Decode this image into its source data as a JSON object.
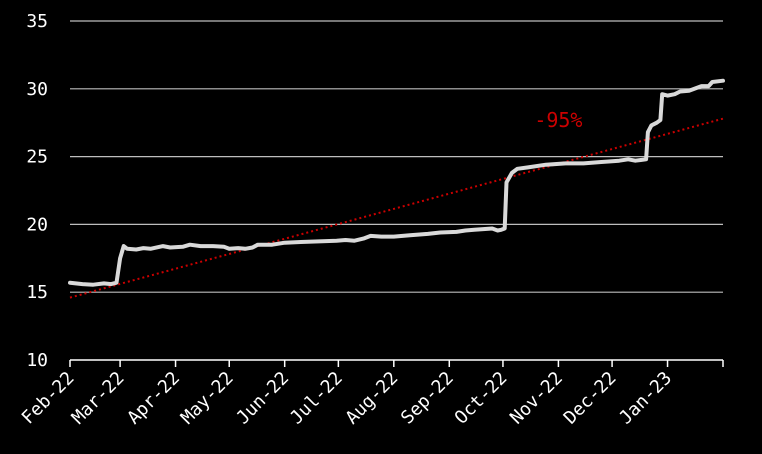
{
  "chart_data": {
    "type": "line",
    "title": "",
    "xlabel": "",
    "ylabel": "",
    "ylim": [
      10,
      35
    ],
    "yticks": [
      10,
      15,
      20,
      25,
      30,
      35
    ],
    "xlim": [
      "2022-02-01",
      "2023-02-01"
    ],
    "xticks": [
      "2022-02-01",
      "2022-03-01",
      "2022-04-01",
      "2022-05-01",
      "2022-06-01",
      "2022-07-01",
      "2022-08-01",
      "2022-09-01",
      "2022-10-01",
      "2022-11-01",
      "2022-12-01",
      "2023-01-01",
      "2023-02-01"
    ],
    "xtick_labels": [
      "Feb-22",
      "Mar-22",
      "Apr-22",
      "May-22",
      "Jun-22",
      "Jul-22",
      "Aug-22",
      "Sep-22",
      "Oct-22",
      "Nov-22",
      "Dec-22",
      "Jan-23",
      ""
    ],
    "grid": "horizontal",
    "background": "#000000",
    "series": [
      {
        "color": "#d9d9d9",
        "points": [
          [
            "2022-02-01",
            15.7
          ],
          [
            "2022-02-08",
            15.6
          ],
          [
            "2022-02-14",
            15.55
          ],
          [
            "2022-02-20",
            15.65
          ],
          [
            "2022-02-24",
            15.6
          ],
          [
            "2022-02-27",
            15.7
          ],
          [
            "2022-03-01",
            17.5
          ],
          [
            "2022-03-03",
            18.4
          ],
          [
            "2022-03-05",
            18.2
          ],
          [
            "2022-03-10",
            18.15
          ],
          [
            "2022-03-14",
            18.25
          ],
          [
            "2022-03-18",
            18.2
          ],
          [
            "2022-03-25",
            18.4
          ],
          [
            "2022-03-29",
            18.3
          ],
          [
            "2022-04-05",
            18.35
          ],
          [
            "2022-04-09",
            18.5
          ],
          [
            "2022-04-15",
            18.4
          ],
          [
            "2022-04-22",
            18.4
          ],
          [
            "2022-04-28",
            18.35
          ],
          [
            "2022-05-01",
            18.2
          ],
          [
            "2022-05-06",
            18.25
          ],
          [
            "2022-05-10",
            18.2
          ],
          [
            "2022-05-14",
            18.3
          ],
          [
            "2022-05-17",
            18.5
          ],
          [
            "2022-05-25",
            18.5
          ],
          [
            "2022-06-01",
            18.65
          ],
          [
            "2022-06-10",
            18.7
          ],
          [
            "2022-06-20",
            18.75
          ],
          [
            "2022-06-30",
            18.8
          ],
          [
            "2022-07-05",
            18.85
          ],
          [
            "2022-07-10",
            18.8
          ],
          [
            "2022-07-15",
            18.95
          ],
          [
            "2022-07-19",
            19.15
          ],
          [
            "2022-07-25",
            19.1
          ],
          [
            "2022-08-01",
            19.1
          ],
          [
            "2022-08-10",
            19.2
          ],
          [
            "2022-08-20",
            19.3
          ],
          [
            "2022-08-27",
            19.4
          ],
          [
            "2022-09-05",
            19.45
          ],
          [
            "2022-09-10",
            19.55
          ],
          [
            "2022-09-15",
            19.6
          ],
          [
            "2022-09-20",
            19.65
          ],
          [
            "2022-09-25",
            19.7
          ],
          [
            "2022-09-28",
            19.55
          ],
          [
            "2022-09-30",
            19.6
          ],
          [
            "2022-10-02",
            19.7
          ],
          [
            "2022-10-03",
            23.1
          ],
          [
            "2022-10-06",
            23.8
          ],
          [
            "2022-10-09",
            24.1
          ],
          [
            "2022-10-15",
            24.2
          ],
          [
            "2022-10-25",
            24.4
          ],
          [
            "2022-11-05",
            24.5
          ],
          [
            "2022-11-15",
            24.5
          ],
          [
            "2022-11-25",
            24.6
          ],
          [
            "2022-12-05",
            24.7
          ],
          [
            "2022-12-10",
            24.8
          ],
          [
            "2022-12-14",
            24.7
          ],
          [
            "2022-12-17",
            24.75
          ],
          [
            "2022-12-20",
            24.8
          ],
          [
            "2022-12-21",
            26.8
          ],
          [
            "2022-12-23",
            27.3
          ],
          [
            "2022-12-26",
            27.5
          ],
          [
            "2022-12-28",
            27.7
          ],
          [
            "2022-12-29",
            29.6
          ],
          [
            "2023-01-01",
            29.5
          ],
          [
            "2023-01-05",
            29.6
          ],
          [
            "2023-01-08",
            29.8
          ],
          [
            "2023-01-13",
            29.85
          ],
          [
            "2023-01-20",
            30.2
          ],
          [
            "2023-01-24",
            30.2
          ],
          [
            "2023-01-26",
            30.5
          ],
          [
            "2023-02-01",
            30.6
          ]
        ]
      }
    ],
    "trendline": {
      "color": "#cc0000",
      "style": "dotted",
      "points": [
        [
          "2022-02-01",
          14.6
        ],
        [
          "2023-02-01",
          27.8
        ]
      ]
    },
    "annotations": [
      {
        "text": "-95%",
        "x": "2022-11-01",
        "y": 27.2,
        "color": "#cc0000"
      }
    ]
  }
}
